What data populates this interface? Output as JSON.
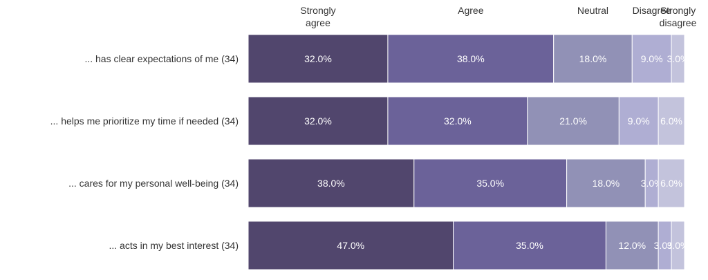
{
  "chart_data": {
    "type": "bar",
    "orientation": "horizontal-stacked-100",
    "categories": [
      "... has clear expectations of me (34)",
      "... helps me prioritize my time if needed (34)",
      "... cares for my personal well-being (34)",
      "... acts in my best interest (34)"
    ],
    "series": [
      {
        "name": "Strongly agree",
        "header_lines": [
          "Strongly",
          "agree"
        ],
        "color": "#51466d",
        "values": [
          32.0,
          32.0,
          38.0,
          47.0
        ]
      },
      {
        "name": "Agree",
        "header_lines": [
          "Agree"
        ],
        "color": "#6b6299",
        "values": [
          38.0,
          32.0,
          35.0,
          35.0
        ]
      },
      {
        "name": "Neutral",
        "header_lines": [
          "Neutral"
        ],
        "color": "#9191b6",
        "values": [
          18.0,
          21.0,
          18.0,
          12.0
        ]
      },
      {
        "name": "Disagree",
        "header_lines": [
          "Disagree"
        ],
        "color": "#afaed3",
        "values": [
          9.0,
          9.0,
          3.0,
          3.0
        ]
      },
      {
        "name": "Strongly disagree",
        "header_lines": [
          "Strongly",
          "disagree"
        ],
        "color": "#c3c3dc",
        "values": [
          3.0,
          6.0,
          6.0,
          3.0
        ]
      }
    ],
    "value_format": "{v}%",
    "legend": "top",
    "grid": false
  }
}
